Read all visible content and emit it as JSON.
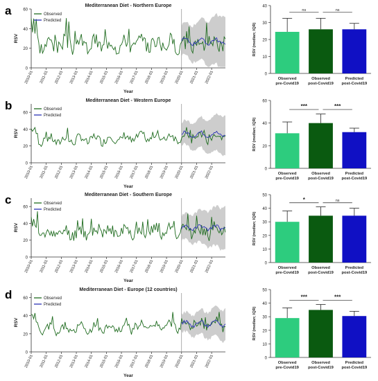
{
  "colors": {
    "observed": "#1e6b1e",
    "predicted": "#2b33b5",
    "band": "#cdcdcd",
    "bar_pre": "#2dcc7e",
    "bar_post": "#0a5a10",
    "bar_pred": "#1010c4"
  },
  "panels": [
    {
      "letter": "a",
      "line": {
        "type": "line",
        "title": "Mediterranean Diet - Northern Europe",
        "xlabel": "Year",
        "ylabel": "RSV",
        "ylim": [
          0,
          60
        ],
        "yticks": [
          "0",
          "20",
          "40",
          "60"
        ],
        "xticks": [
          "2010-01",
          "2011-01",
          "2012-01",
          "2013-01",
          "2014-01",
          "2015-01",
          "2016-01",
          "2017-01",
          "2018-01",
          "2019-01",
          "2020-01",
          "2021-01",
          "2022-01"
        ],
        "legend": [
          "Observed",
          "Predicted"
        ],
        "base": 24,
        "amp": 15,
        "trend": 1,
        "post_amp": 9,
        "band_width": 28,
        "pred_level": 27,
        "seed": 3
      },
      "bar": {
        "type": "bar",
        "ylabel": "RSV (median; IQR)",
        "ylim": [
          0,
          40
        ],
        "yticks": [
          "0",
          "10",
          "20",
          "30",
          "40"
        ],
        "categories": [
          "Observed\npre-Covid19",
          "Observed\npost-Covid19",
          "Predicted\npost-Covid19"
        ],
        "values": [
          24.5,
          26,
          26
        ],
        "err_high": [
          32.5,
          32.5,
          29.5
        ],
        "significance": [
          {
            "from": 0,
            "to": 1,
            "label": "ns",
            "level": 36
          },
          {
            "from": 1,
            "to": 2,
            "label": "ns",
            "level": 36
          }
        ]
      }
    },
    {
      "letter": "b",
      "line": {
        "type": "line",
        "title": "Mediterranean Diet - Western Europe",
        "xlabel": "Year",
        "ylabel": "RSV",
        "ylim": [
          0,
          70
        ],
        "yticks": [
          "0",
          "20",
          "40",
          "60"
        ],
        "xticks": [
          "2010-01",
          "2011-01",
          "2012-01",
          "2013-01",
          "2014-01",
          "2015-01",
          "2016-01",
          "2017-01",
          "2018-01",
          "2019-01",
          "2020-01",
          "2021-01",
          "2022-01"
        ],
        "legend": [
          "Observed",
          "Predicted"
        ],
        "base": 26,
        "amp": 10,
        "trend": 6,
        "post_amp": 8,
        "band_width": 24,
        "pred_level": 34,
        "seed": 7
      },
      "bar": {
        "type": "bar",
        "ylabel": "RSV (median; IQR)",
        "ylim": [
          0,
          60
        ],
        "yticks": [
          "0",
          "20",
          "40",
          "60"
        ],
        "categories": [
          "Observed\npre-Covid19",
          "Observed\npost-Covid19",
          "Predicted\npost-Covid19"
        ],
        "values": [
          31,
          40,
          32
        ],
        "err_high": [
          41,
          48,
          35.5
        ],
        "significance": [
          {
            "from": 0,
            "to": 1,
            "label": "***",
            "level": 52
          },
          {
            "from": 1,
            "to": 2,
            "label": "***",
            "level": 52
          }
        ]
      }
    },
    {
      "letter": "c",
      "line": {
        "type": "line",
        "title": "Mediterranean Diet - Southern Europe",
        "xlabel": "Year",
        "ylabel": "RSV",
        "ylim": [
          0,
          70
        ],
        "yticks": [
          "0",
          "20",
          "40",
          "60"
        ],
        "xticks": [
          "2010-01",
          "2011-01",
          "2012-01",
          "2013-01",
          "2014-01",
          "2015-01",
          "2016-01",
          "2017-01",
          "2018-01",
          "2019-01",
          "2020-01",
          "2021-01",
          "2022-01"
        ],
        "legend": [
          "Observed",
          "Predicted"
        ],
        "base": 28,
        "amp": 14,
        "trend": 4,
        "post_amp": 9,
        "band_width": 26,
        "pred_level": 35,
        "seed": 11
      },
      "bar": {
        "type": "bar",
        "ylabel": "RSV (median; IQR)",
        "ylim": [
          0,
          50
        ],
        "yticks": [
          "0",
          "10",
          "20",
          "30",
          "40",
          "50"
        ],
        "categories": [
          "Observed\npre-Covid19",
          "Observed\npost-Covid19",
          "Predicted\npost-Covid19"
        ],
        "values": [
          30,
          34.5,
          34.5
        ],
        "err_high": [
          38,
          41,
          40
        ],
        "significance": [
          {
            "from": 0,
            "to": 1,
            "label": "*",
            "level": 44
          },
          {
            "from": 1,
            "to": 2,
            "label": "ns",
            "level": 44
          }
        ]
      }
    },
    {
      "letter": "d",
      "line": {
        "type": "line",
        "title": "Mediterranean Diet - Europe (12 countries)",
        "xlabel": "Year",
        "ylabel": "RSV",
        "ylim": [
          0,
          65
        ],
        "yticks": [
          "0",
          "20",
          "40",
          "60"
        ],
        "xticks": [
          "2010-01",
          "2011-01",
          "2012-01",
          "2013-01",
          "2014-01",
          "2015-01",
          "2016-01",
          "2017-01",
          "2018-01",
          "2019-01",
          "2020-01",
          "2021-01",
          "2022-01"
        ],
        "legend": [
          "Observed",
          "Predicted"
        ],
        "base": 24,
        "amp": 9,
        "trend": 6,
        "post_amp": 6,
        "band_width": 18,
        "pred_level": 31,
        "seed": 5
      },
      "bar": {
        "type": "bar",
        "ylabel": "RSV (median; IQR)",
        "ylim": [
          0,
          50
        ],
        "yticks": [
          "0",
          "10",
          "20",
          "30",
          "40",
          "50"
        ],
        "categories": [
          "Observed\npre-Covid19",
          "Observed\npost-Covid19",
          "Predicted\npost-Covid19"
        ],
        "values": [
          29,
          35,
          30.5
        ],
        "err_high": [
          36.5,
          39,
          34
        ],
        "significance": [
          {
            "from": 0,
            "to": 1,
            "label": "***",
            "level": 42
          },
          {
            "from": 1,
            "to": 2,
            "label": "***",
            "level": 42
          }
        ]
      }
    }
  ]
}
